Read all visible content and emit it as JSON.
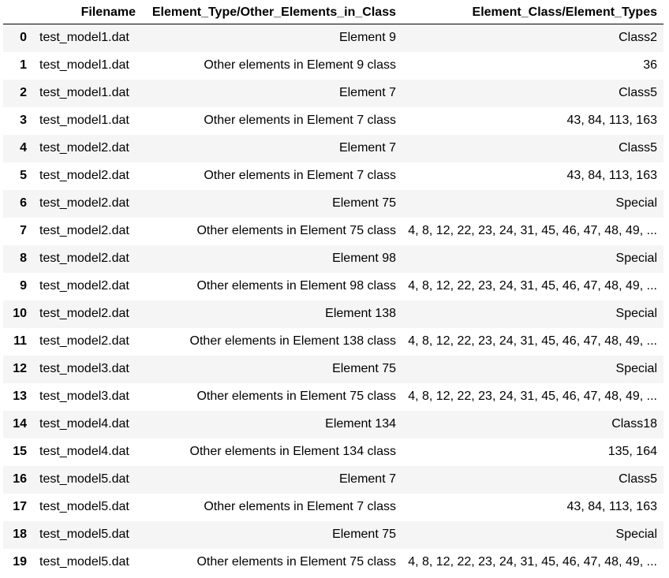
{
  "table": {
    "columns": [
      "",
      "Filename",
      "Element_Type/Other_Elements_in_Class",
      "Element_Class/Element_Types"
    ],
    "rows": [
      {
        "index": "0",
        "filename": "test_model1.dat",
        "element_type": "Element 9",
        "element_class": "Class2"
      },
      {
        "index": "1",
        "filename": "test_model1.dat",
        "element_type": "Other elements in Element 9 class",
        "element_class": "36"
      },
      {
        "index": "2",
        "filename": "test_model1.dat",
        "element_type": "Element 7",
        "element_class": "Class5"
      },
      {
        "index": "3",
        "filename": "test_model1.dat",
        "element_type": "Other elements in Element 7 class",
        "element_class": "43, 84, 113, 163"
      },
      {
        "index": "4",
        "filename": "test_model2.dat",
        "element_type": "Element 7",
        "element_class": "Class5"
      },
      {
        "index": "5",
        "filename": "test_model2.dat",
        "element_type": "Other elements in Element 7 class",
        "element_class": "43, 84, 113, 163"
      },
      {
        "index": "6",
        "filename": "test_model2.dat",
        "element_type": "Element 75",
        "element_class": "Special"
      },
      {
        "index": "7",
        "filename": "test_model2.dat",
        "element_type": "Other elements in Element 75 class",
        "element_class": "4, 8, 12, 22, 23, 24, 31, 45, 46, 47, 48, 49, ..."
      },
      {
        "index": "8",
        "filename": "test_model2.dat",
        "element_type": "Element 98",
        "element_class": "Special"
      },
      {
        "index": "9",
        "filename": "test_model2.dat",
        "element_type": "Other elements in Element 98 class",
        "element_class": "4, 8, 12, 22, 23, 24, 31, 45, 46, 47, 48, 49, ..."
      },
      {
        "index": "10",
        "filename": "test_model2.dat",
        "element_type": "Element 138",
        "element_class": "Special"
      },
      {
        "index": "11",
        "filename": "test_model2.dat",
        "element_type": "Other elements in Element 138 class",
        "element_class": "4, 8, 12, 22, 23, 24, 31, 45, 46, 47, 48, 49, ..."
      },
      {
        "index": "12",
        "filename": "test_model3.dat",
        "element_type": "Element 75",
        "element_class": "Special"
      },
      {
        "index": "13",
        "filename": "test_model3.dat",
        "element_type": "Other elements in Element 75 class",
        "element_class": "4, 8, 12, 22, 23, 24, 31, 45, 46, 47, 48, 49, ..."
      },
      {
        "index": "14",
        "filename": "test_model4.dat",
        "element_type": "Element 134",
        "element_class": "Class18"
      },
      {
        "index": "15",
        "filename": "test_model4.dat",
        "element_type": "Other elements in Element 134 class",
        "element_class": "135, 164"
      },
      {
        "index": "16",
        "filename": "test_model5.dat",
        "element_type": "Element 7",
        "element_class": "Class5"
      },
      {
        "index": "17",
        "filename": "test_model5.dat",
        "element_type": "Other elements in Element 7 class",
        "element_class": "43, 84, 113, 163"
      },
      {
        "index": "18",
        "filename": "test_model5.dat",
        "element_type": "Element 75",
        "element_class": "Special"
      },
      {
        "index": "19",
        "filename": "test_model5.dat",
        "element_type": "Other elements in Element 75 class",
        "element_class": "4, 8, 12, 22, 23, 24, 31, 45, 46, 47, 48, 49, ..."
      }
    ]
  }
}
